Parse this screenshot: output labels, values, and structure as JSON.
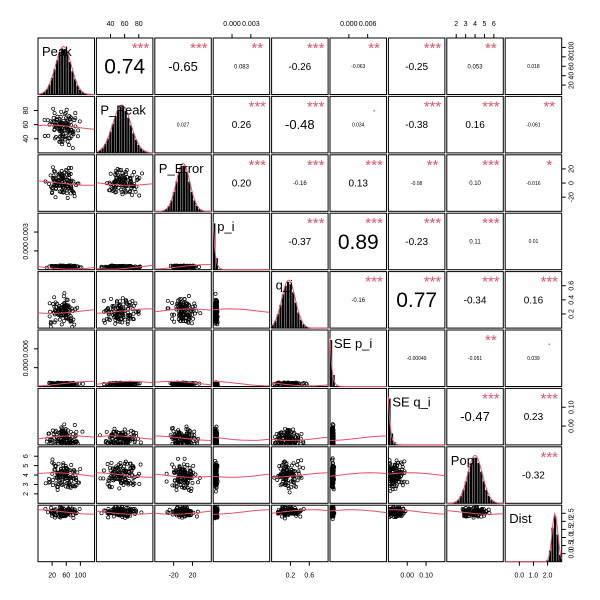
{
  "chart_data": {
    "type": "scatter",
    "variables": [
      "Peak",
      "P_Peak",
      "P_Error",
      "p_i",
      "q_i",
      "SE p_i",
      "SE q_i",
      "Pop",
      "Dist"
    ],
    "diag_labels": [
      "Peak",
      "P_Peak",
      "P_Error",
      "p_i",
      "q_i",
      "SE p_i",
      "SE q_i",
      "Pop",
      "Dist"
    ],
    "correlations": [
      {
        "row": 0,
        "col": 1,
        "text": "0.74",
        "stars": "***",
        "size": "xl"
      },
      {
        "row": 0,
        "col": 2,
        "text": "-0.65",
        "stars": "***",
        "size": "md"
      },
      {
        "row": 0,
        "col": 3,
        "text": "0.083",
        "stars": "**",
        "size": "xs"
      },
      {
        "row": 0,
        "col": 4,
        "text": "-0.26",
        "stars": "***",
        "size": "sm"
      },
      {
        "row": 0,
        "col": 5,
        "text": "-0.063",
        "stars": "**",
        "size": "xxs"
      },
      {
        "row": 0,
        "col": 6,
        "text": "-0.25",
        "stars": "***",
        "size": "sm"
      },
      {
        "row": 0,
        "col": 7,
        "text": "0.053",
        "stars": "**",
        "size": "xs"
      },
      {
        "row": 0,
        "col": 8,
        "text": "0.018",
        "stars": "",
        "size": "xxs"
      },
      {
        "row": 1,
        "col": 2,
        "text": "0.027",
        "stars": "",
        "size": "xxs"
      },
      {
        "row": 1,
        "col": 3,
        "text": "0.26",
        "stars": "***",
        "size": "sm"
      },
      {
        "row": 1,
        "col": 4,
        "text": "-0.48",
        "stars": "***",
        "size": "md"
      },
      {
        "row": 1,
        "col": 5,
        "text": "0.034",
        "stars": ".",
        "size": "xxs"
      },
      {
        "row": 1,
        "col": 6,
        "text": "-0.38",
        "stars": "***",
        "size": "sm"
      },
      {
        "row": 1,
        "col": 7,
        "text": "0.16",
        "stars": "***",
        "size": "sm"
      },
      {
        "row": 1,
        "col": 8,
        "text": "-0.061",
        "stars": "**",
        "size": "xxs"
      },
      {
        "row": 2,
        "col": 3,
        "text": "0.20",
        "stars": "***",
        "size": "sm"
      },
      {
        "row": 2,
        "col": 4,
        "text": "-0.16",
        "stars": "***",
        "size": "xs"
      },
      {
        "row": 2,
        "col": 5,
        "text": "0.13",
        "stars": "***",
        "size": "sm"
      },
      {
        "row": 2,
        "col": 6,
        "text": "-0.08",
        "stars": "**",
        "size": "xxs"
      },
      {
        "row": 2,
        "col": 7,
        "text": "0.10",
        "stars": "***",
        "size": "xs"
      },
      {
        "row": 2,
        "col": 8,
        "text": "-0.016",
        "stars": "*",
        "size": "xxs"
      },
      {
        "row": 3,
        "col": 4,
        "text": "-0.37",
        "stars": "***",
        "size": "sm"
      },
      {
        "row": 3,
        "col": 5,
        "text": "0.89",
        "stars": "***",
        "size": "xl"
      },
      {
        "row": 3,
        "col": 6,
        "text": "-0.23",
        "stars": "***",
        "size": "sm"
      },
      {
        "row": 3,
        "col": 7,
        "text": "0.11",
        "stars": "***",
        "size": "xs"
      },
      {
        "row": 3,
        "col": 8,
        "text": "0.01",
        "stars": "",
        "size": "xxs"
      },
      {
        "row": 4,
        "col": 5,
        "text": "-0.16",
        "stars": "***",
        "size": "xs"
      },
      {
        "row": 4,
        "col": 6,
        "text": "0.77",
        "stars": "***",
        "size": "xl"
      },
      {
        "row": 4,
        "col": 7,
        "text": "-0.34",
        "stars": "***",
        "size": "sm"
      },
      {
        "row": 4,
        "col": 8,
        "text": "0.16",
        "stars": "***",
        "size": "sm"
      },
      {
        "row": 5,
        "col": 6,
        "text": "-0.00049",
        "stars": "",
        "size": "xxs"
      },
      {
        "row": 5,
        "col": 7,
        "text": "-0.051",
        "stars": "**",
        "size": "xxs"
      },
      {
        "row": 5,
        "col": 8,
        "text": "0.039",
        "stars": ".",
        "size": "xxs"
      },
      {
        "row": 6,
        "col": 7,
        "text": "-0.47",
        "stars": "***",
        "size": "md"
      },
      {
        "row": 6,
        "col": 8,
        "text": "0.23",
        "stars": "***",
        "size": "sm"
      },
      {
        "row": 7,
        "col": 8,
        "text": "-0.32",
        "stars": "***",
        "size": "sm"
      }
    ],
    "axis_ticks": {
      "top": [
        {
          "col": 1,
          "labels": [
            "40",
            "60",
            "80"
          ]
        },
        {
          "col": 3,
          "labels": [
            "0.000",
            "0.003"
          ]
        },
        {
          "col": 5,
          "labels": [
            "0.000",
            "0.006"
          ]
        },
        {
          "col": 7,
          "labels": [
            "2",
            "3",
            "4",
            "5",
            "6"
          ]
        }
      ],
      "bottom": [
        {
          "col": 0,
          "labels": [
            "20",
            "60",
            "100"
          ]
        },
        {
          "col": 2,
          "labels": [
            "-20",
            "20"
          ]
        },
        {
          "col": 4,
          "labels": [
            "0.2",
            "0.6"
          ]
        },
        {
          "col": 6,
          "labels": [
            "0.00",
            "0.10"
          ]
        },
        {
          "col": 8,
          "labels": [
            "0.0",
            "1.0",
            "2.0"
          ]
        }
      ],
      "left": [
        {
          "row": 1,
          "labels": [
            "40",
            "60",
            "80"
          ]
        },
        {
          "row": 3,
          "labels": [
            "0.000",
            "0.003"
          ]
        },
        {
          "row": 5,
          "labels": [
            "0.000",
            "0.006"
          ]
        },
        {
          "row": 7,
          "labels": [
            "2",
            "3",
            "4",
            "5",
            "6"
          ]
        }
      ],
      "right": [
        {
          "row": 0,
          "labels": [
            "20",
            "40",
            "60",
            "80",
            "100"
          ]
        },
        {
          "row": 2,
          "labels": [
            "-20",
            "0",
            "20"
          ]
        },
        {
          "row": 4,
          "labels": [
            "0.2",
            "0.4",
            "0.6"
          ]
        },
        {
          "row": 6,
          "labels": [
            "0.00",
            "0.10"
          ]
        },
        {
          "row": 8,
          "labels": [
            "0.0",
            "0.5",
            "1.0",
            "1.5",
            "2.0",
            "2.5"
          ]
        }
      ]
    },
    "colors": {
      "points": "#000000",
      "smooth": "#DF536B",
      "stars": "#DF536B",
      "histogram": "#000000",
      "density": "#DF536B"
    }
  }
}
